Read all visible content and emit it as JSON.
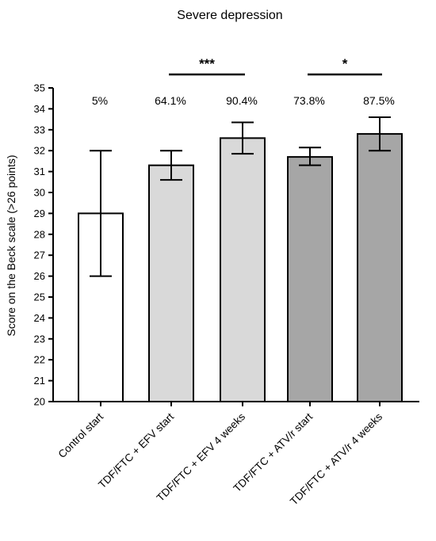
{
  "chart_data": {
    "type": "bar",
    "title": "Severe depression",
    "ylabel": "Score on the Beck scale (>26 points)",
    "xlabel": "",
    "ylim": [
      20,
      35
    ],
    "yticks": [
      20,
      21,
      22,
      23,
      24,
      25,
      26,
      27,
      28,
      29,
      30,
      31,
      32,
      33,
      34,
      35
    ],
    "categories": [
      "Control start",
      "TDF/FTC + EFV start",
      "TDF/FTC + EFV 4 weeks",
      "TDF/FTC + ATV/r start",
      "TDF/FTC + ATV/r 4 weeks"
    ],
    "values": [
      29.0,
      31.3,
      32.6,
      31.7,
      32.8
    ],
    "error_low": [
      26.0,
      30.6,
      31.85,
      31.3,
      32.0
    ],
    "error_high": [
      32.0,
      32.0,
      33.35,
      32.15,
      33.6
    ],
    "bar_colors": [
      "#ffffff",
      "#d9d9d9",
      "#d9d9d9",
      "#a6a6a6",
      "#a6a6a6"
    ],
    "percent_labels": [
      "5%",
      "64.1%",
      "90.4%",
      "73.8%",
      "87.5%"
    ],
    "significance": [
      {
        "from": 1,
        "to": 2,
        "label": "***"
      },
      {
        "from": 3,
        "to": 4,
        "label": "*"
      }
    ],
    "grid": false
  }
}
